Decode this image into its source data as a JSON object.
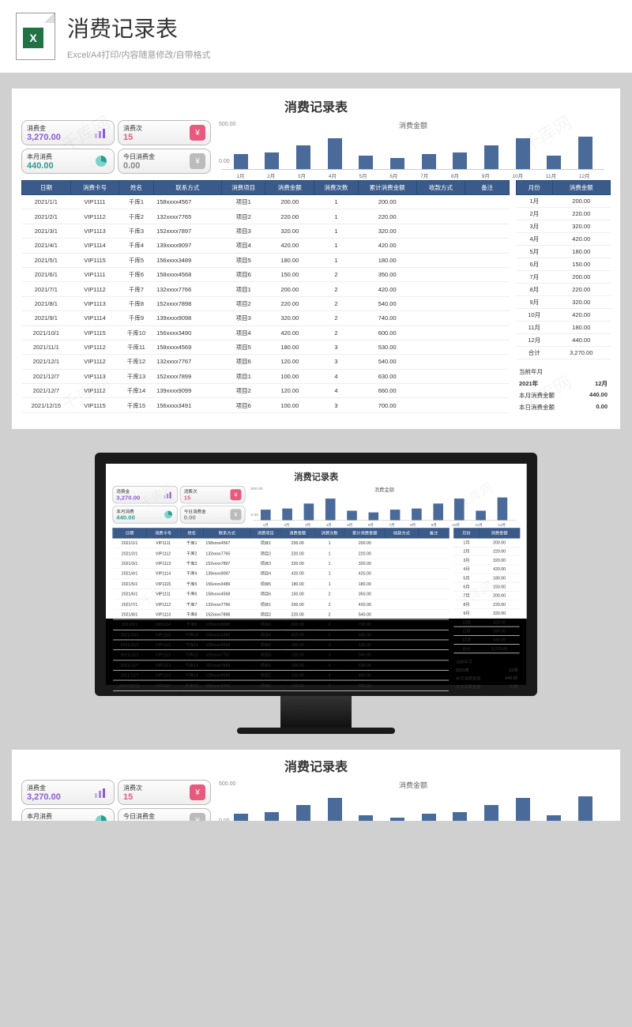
{
  "header": {
    "title": "消费记录表",
    "subtitle": "Excel/A4打印/内容随意修改/自带格式",
    "icon_letter": "X"
  },
  "sheet": {
    "title": "消费记录表",
    "metrics": {
      "total_amount": {
        "label": "消费金",
        "value": "3,270.00"
      },
      "count": {
        "label": "消费次",
        "value": "15",
        "icon_glyph": "¥"
      },
      "month_amount": {
        "label": "本月消费",
        "value": "440.00"
      },
      "today_amount": {
        "label": "今日消费金",
        "value": "0.00",
        "icon_glyph": "¥"
      }
    },
    "chart": {
      "title": "消费金额",
      "type": "bar",
      "ymax": 500,
      "ymax_label": "500.00",
      "ymin_label": "0.00",
      "categories": [
        "1月",
        "2月",
        "3月",
        "4月",
        "5月",
        "6月",
        "7月",
        "8月",
        "9月",
        "10月",
        "11月",
        "12月"
      ],
      "values": [
        200,
        220,
        320,
        420,
        180,
        150,
        200,
        220,
        320,
        420,
        180,
        440
      ],
      "bar_color": "#4a6a9a",
      "background": "#ffffff"
    },
    "main_table": {
      "columns": [
        "日期",
        "消费卡号",
        "姓名",
        "联系方式",
        "消费项目",
        "消费金额",
        "消费次数",
        "累计消费金额",
        "收款方式",
        "备注"
      ],
      "col_widths": [
        "10%",
        "10%",
        "7%",
        "14%",
        "9%",
        "10%",
        "9%",
        "12%",
        "10%",
        "9%"
      ],
      "rows": [
        [
          "2021/1/1",
          "VIP1111",
          "千库1",
          "158xxxx4567",
          "项目1",
          "200.00",
          "1",
          "200.00",
          "",
          ""
        ],
        [
          "2021/2/1",
          "VIP1112",
          "千库2",
          "132xxxx7765",
          "项目2",
          "220.00",
          "1",
          "220.00",
          "",
          ""
        ],
        [
          "2021/3/1",
          "VIP1113",
          "千库3",
          "152xxxx7897",
          "项目3",
          "320.00",
          "1",
          "320.00",
          "",
          ""
        ],
        [
          "2021/4/1",
          "VIP1114",
          "千库4",
          "139xxxx9097",
          "项目4",
          "420.00",
          "1",
          "420.00",
          "",
          ""
        ],
        [
          "2021/5/1",
          "VIP1115",
          "千库5",
          "156xxxx3489",
          "项目5",
          "180.00",
          "1",
          "180.00",
          "",
          ""
        ],
        [
          "2021/6/1",
          "VIP1111",
          "千库6",
          "158xxxx4568",
          "项目6",
          "150.00",
          "2",
          "350.00",
          "",
          ""
        ],
        [
          "2021/7/1",
          "VIP1112",
          "千库7",
          "132xxxx7766",
          "项目1",
          "200.00",
          "2",
          "420.00",
          "",
          ""
        ],
        [
          "2021/8/1",
          "VIP1113",
          "千库8",
          "152xxxx7898",
          "项目2",
          "220.00",
          "2",
          "540.00",
          "",
          ""
        ],
        [
          "2021/9/1",
          "VIP1114",
          "千库9",
          "139xxxx9098",
          "项目3",
          "320.00",
          "2",
          "740.00",
          "",
          ""
        ],
        [
          "2021/10/1",
          "VIP1115",
          "千库10",
          "156xxxx3490",
          "项目4",
          "420.00",
          "2",
          "600.00",
          "",
          ""
        ],
        [
          "2021/11/1",
          "VIP1112",
          "千库11",
          "158xxxx4569",
          "项目5",
          "180.00",
          "3",
          "530.00",
          "",
          ""
        ],
        [
          "2021/12/1",
          "VIP1112",
          "千库12",
          "132xxxx7767",
          "项目6",
          "120.00",
          "3",
          "540.00",
          "",
          ""
        ],
        [
          "2021/12/7",
          "VIP1113",
          "千库13",
          "152xxxx7899",
          "项目1",
          "100.00",
          "4",
          "630.00",
          "",
          ""
        ],
        [
          "2021/12/7",
          "VIP1112",
          "千库14",
          "139xxxx9099",
          "项目2",
          "120.00",
          "4",
          "660.00",
          "",
          ""
        ],
        [
          "2021/12/15",
          "VIP1115",
          "千库15",
          "156xxxx3491",
          "项目6",
          "100.00",
          "3",
          "700.00",
          "",
          ""
        ]
      ]
    },
    "side_table": {
      "columns": [
        "月份",
        "消费金额"
      ],
      "rows": [
        [
          "1月",
          "200.00"
        ],
        [
          "2月",
          "220.00"
        ],
        [
          "3月",
          "320.00"
        ],
        [
          "4月",
          "420.00"
        ],
        [
          "5月",
          "180.00"
        ],
        [
          "6月",
          "150.00"
        ],
        [
          "7月",
          "200.00"
        ],
        [
          "8月",
          "220.00"
        ],
        [
          "9月",
          "320.00"
        ],
        [
          "10月",
          "420.00"
        ],
        [
          "11月",
          "180.00"
        ],
        [
          "12月",
          "440.00"
        ],
        [
          "合计",
          "3,270.00"
        ]
      ]
    },
    "side_info": {
      "current_label": "当前年月",
      "year": "2021年",
      "month": "12月",
      "month_amount_label": "本月消费金额",
      "month_amount": "440.00",
      "today_amount_label": "本日消费金额",
      "today_amount": "0.00"
    }
  },
  "watermark": "千库网"
}
